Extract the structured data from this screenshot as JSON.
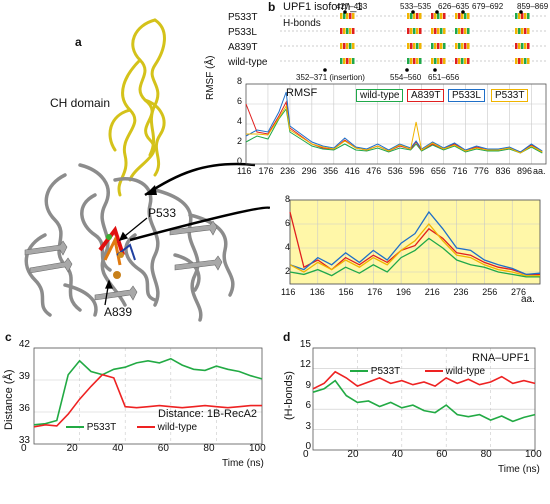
{
  "panels": {
    "a": {
      "letter": "a",
      "label_ch": "CH domain",
      "label_p533": "P533",
      "label_a839": "A839",
      "colors": {
        "ch": "#d4c21a",
        "protein": "#8c8c8c",
        "red": "#e01010",
        "orange": "#e07a10",
        "green": "#3ab030",
        "blue": "#2040a0"
      }
    },
    "b": {
      "letter": "b",
      "title": "UPF1 isoform_1",
      "hbonds_label": "H-bonds",
      "rows": [
        "P533T",
        "P533L",
        "A839T",
        "wild-type"
      ],
      "top_annotations": [
        "427–433",
        "533–535",
        "626–635",
        "679–692",
        "859–869"
      ],
      "bottom_annotations": [
        "352–371 (insertion)",
        "554–560",
        "651–656"
      ],
      "rmsf_label": "RMSF",
      "ylabel": "RMSF (Å)",
      "xunit": "aa.",
      "yticks": [
        "0",
        "2",
        "4",
        "6",
        "8"
      ],
      "xticks": [
        "116",
        "176",
        "236",
        "296",
        "356",
        "416",
        "476",
        "536",
        "596",
        "656",
        "716",
        "776",
        "836",
        "896"
      ],
      "legend": [
        "wild-type",
        "A839T",
        "P533L",
        "P533T"
      ],
      "colors": {
        "wild-type": "#1fa84a",
        "A839T": "#e01f1f",
        "P533L": "#1f6fc8",
        "P533T": "#f0b400"
      },
      "zoom": {
        "yticks": [
          "2",
          "4",
          "6",
          "8"
        ],
        "xticks": [
          "116",
          "136",
          "156",
          "176",
          "196",
          "216",
          "236",
          "256",
          "276"
        ],
        "xunit": "aa."
      }
    },
    "c": {
      "letter": "c",
      "ylabel": "Distance (Å)",
      "xlabel": "Time (ns)",
      "annotation": "Distance: 1B-RecA2",
      "yticks": [
        "33",
        "36",
        "39",
        "42"
      ],
      "xticks": [
        "0",
        "20",
        "40",
        "60",
        "80",
        "100"
      ],
      "legend": [
        "P533T",
        "wild-type"
      ]
    },
    "d": {
      "letter": "d",
      "ylabel": "(H-bonds)",
      "xlabel": "Time (ns)",
      "annotation": "RNA–UPF1",
      "yticks": [
        "0",
        "3",
        "6",
        "9",
        "12",
        "15"
      ],
      "xticks": [
        "0",
        "20",
        "40",
        "60",
        "80",
        "100"
      ],
      "legend": [
        "P533T",
        "wild-type"
      ]
    }
  },
  "chart_data": [
    {
      "type": "line",
      "panel": "b",
      "title": "RMSF",
      "xlabel": "aa.",
      "ylabel": "RMSF (Å)",
      "xlim": [
        116,
        936
      ],
      "ylim": [
        0,
        8
      ],
      "grid": true,
      "legend_position": "top-right",
      "x": [
        116,
        146,
        176,
        206,
        226,
        236,
        266,
        296,
        326,
        356,
        386,
        416,
        446,
        476,
        506,
        536,
        566,
        581,
        596,
        626,
        656,
        686,
        716,
        746,
        776,
        806,
        836,
        866,
        896,
        926
      ],
      "series": [
        {
          "name": "wild-type",
          "values": [
            2.2,
            2.8,
            2.5,
            4.5,
            5.5,
            3.2,
            2.5,
            1.8,
            1.5,
            1.4,
            2.0,
            1.4,
            1.3,
            1.6,
            1.2,
            1.6,
            1.4,
            2.0,
            1.3,
            1.9,
            1.4,
            1.8,
            1.2,
            1.5,
            1.3,
            1.3,
            1.5,
            1.1,
            1.7,
            1.1
          ]
        },
        {
          "name": "A839T",
          "values": [
            6.0,
            3.2,
            3.0,
            4.8,
            6.2,
            3.6,
            2.8,
            2.0,
            1.6,
            1.5,
            2.4,
            1.6,
            1.4,
            1.8,
            1.3,
            1.8,
            1.5,
            2.2,
            1.4,
            2.0,
            1.5,
            2.0,
            1.3,
            1.7,
            1.4,
            1.4,
            1.6,
            1.2,
            1.9,
            1.2
          ]
        },
        {
          "name": "P533L",
          "values": [
            2.8,
            3.4,
            3.2,
            5.2,
            7.2,
            3.8,
            3.0,
            2.2,
            1.8,
            1.6,
            2.6,
            1.7,
            1.5,
            2.0,
            1.4,
            2.0,
            1.6,
            2.3,
            1.5,
            2.2,
            1.6,
            2.1,
            1.4,
            1.8,
            1.5,
            1.5,
            1.7,
            1.2,
            2.0,
            1.3
          ]
        },
        {
          "name": "P533T",
          "values": [
            3.0,
            3.0,
            2.9,
            4.6,
            5.8,
            3.4,
            2.7,
            2.0,
            1.7,
            1.5,
            2.3,
            1.6,
            1.4,
            1.8,
            1.3,
            1.9,
            1.5,
            4.2,
            1.4,
            2.1,
            1.5,
            1.9,
            1.3,
            1.6,
            1.4,
            1.4,
            1.6,
            1.1,
            1.8,
            1.2
          ]
        }
      ]
    },
    {
      "type": "line",
      "panel": "b-zoom",
      "xlabel": "aa.",
      "xlim": [
        116,
        296
      ],
      "ylim": [
        1,
        8
      ],
      "grid": true,
      "x": [
        116,
        126,
        136,
        146,
        156,
        166,
        176,
        186,
        196,
        206,
        216,
        226,
        236,
        246,
        256,
        266,
        276,
        286,
        296
      ],
      "series": [
        {
          "name": "wild-type",
          "values": [
            2.0,
            1.8,
            2.2,
            1.7,
            2.4,
            1.9,
            2.6,
            2.0,
            3.2,
            3.8,
            4.8,
            4.0,
            3.0,
            2.6,
            2.4,
            2.0,
            1.8,
            1.6,
            1.6
          ]
        },
        {
          "name": "A839T",
          "values": [
            7.0,
            2.4,
            3.0,
            2.2,
            3.2,
            2.6,
            3.4,
            2.8,
            3.8,
            4.2,
            5.6,
            4.8,
            3.6,
            3.4,
            2.8,
            2.4,
            2.2,
            1.8,
            1.8
          ]
        },
        {
          "name": "P533L",
          "values": [
            2.6,
            2.2,
            3.2,
            2.6,
            3.6,
            2.8,
            3.8,
            3.0,
            4.4,
            5.2,
            7.0,
            5.6,
            4.0,
            3.8,
            3.0,
            2.6,
            2.3,
            1.8,
            1.9
          ]
        },
        {
          "name": "P533T",
          "values": [
            2.6,
            2.0,
            2.8,
            2.2,
            3.0,
            2.4,
            3.2,
            2.6,
            3.8,
            4.6,
            6.0,
            4.6,
            3.4,
            3.2,
            2.6,
            2.2,
            2.0,
            1.7,
            1.7
          ]
        }
      ]
    },
    {
      "type": "line",
      "panel": "c",
      "xlabel": "Time (ns)",
      "ylabel": "Distance (Å)",
      "xlim": [
        0,
        100
      ],
      "ylim": [
        33,
        42
      ],
      "grid": true,
      "legend_position": "bottom-left",
      "x": [
        0,
        5,
        10,
        15,
        20,
        25,
        30,
        35,
        40,
        45,
        50,
        55,
        60,
        65,
        70,
        75,
        80,
        85,
        90,
        95,
        100
      ],
      "series": [
        {
          "name": "P533T",
          "values": [
            34.8,
            34.9,
            35.2,
            39.5,
            40.8,
            39.8,
            39.5,
            40.0,
            40.2,
            40.6,
            40.8,
            40.6,
            41.0,
            40.4,
            40.0,
            39.9,
            40.3,
            40.0,
            39.8,
            39.4,
            39.1
          ]
        },
        {
          "name": "wild-type",
          "values": [
            34.6,
            34.8,
            34.7,
            35.8,
            37.2,
            38.4,
            39.5,
            39.2,
            36.5,
            36.4,
            36.5,
            36.6,
            36.5,
            36.4,
            36.5,
            36.6,
            36.5,
            36.4,
            36.5,
            36.6,
            36.6
          ]
        }
      ]
    },
    {
      "type": "line",
      "panel": "d",
      "xlabel": "Time (ns)",
      "ylabel": "(H-bonds)",
      "xlim": [
        0,
        100
      ],
      "ylim": [
        0,
        15
      ],
      "grid": true,
      "legend_position": "top",
      "x": [
        0,
        5,
        10,
        15,
        20,
        25,
        30,
        35,
        40,
        45,
        50,
        55,
        60,
        65,
        70,
        75,
        80,
        85,
        90,
        95,
        100
      ],
      "series": [
        {
          "name": "P533T",
          "values": [
            8.5,
            9.0,
            10.2,
            8.0,
            7.0,
            7.2,
            6.4,
            7.0,
            6.2,
            6.6,
            5.8,
            5.5,
            6.6,
            5.2,
            4.9,
            5.2,
            4.4,
            5.0,
            4.2,
            4.8,
            5.2
          ]
        },
        {
          "name": "wild-type",
          "values": [
            9.0,
            9.8,
            11.5,
            10.6,
            9.4,
            10.0,
            10.6,
            9.8,
            10.2,
            9.6,
            10.0,
            9.4,
            10.6,
            9.8,
            10.4,
            9.6,
            10.0,
            10.8,
            9.8,
            10.2,
            9.8
          ]
        }
      ]
    }
  ]
}
